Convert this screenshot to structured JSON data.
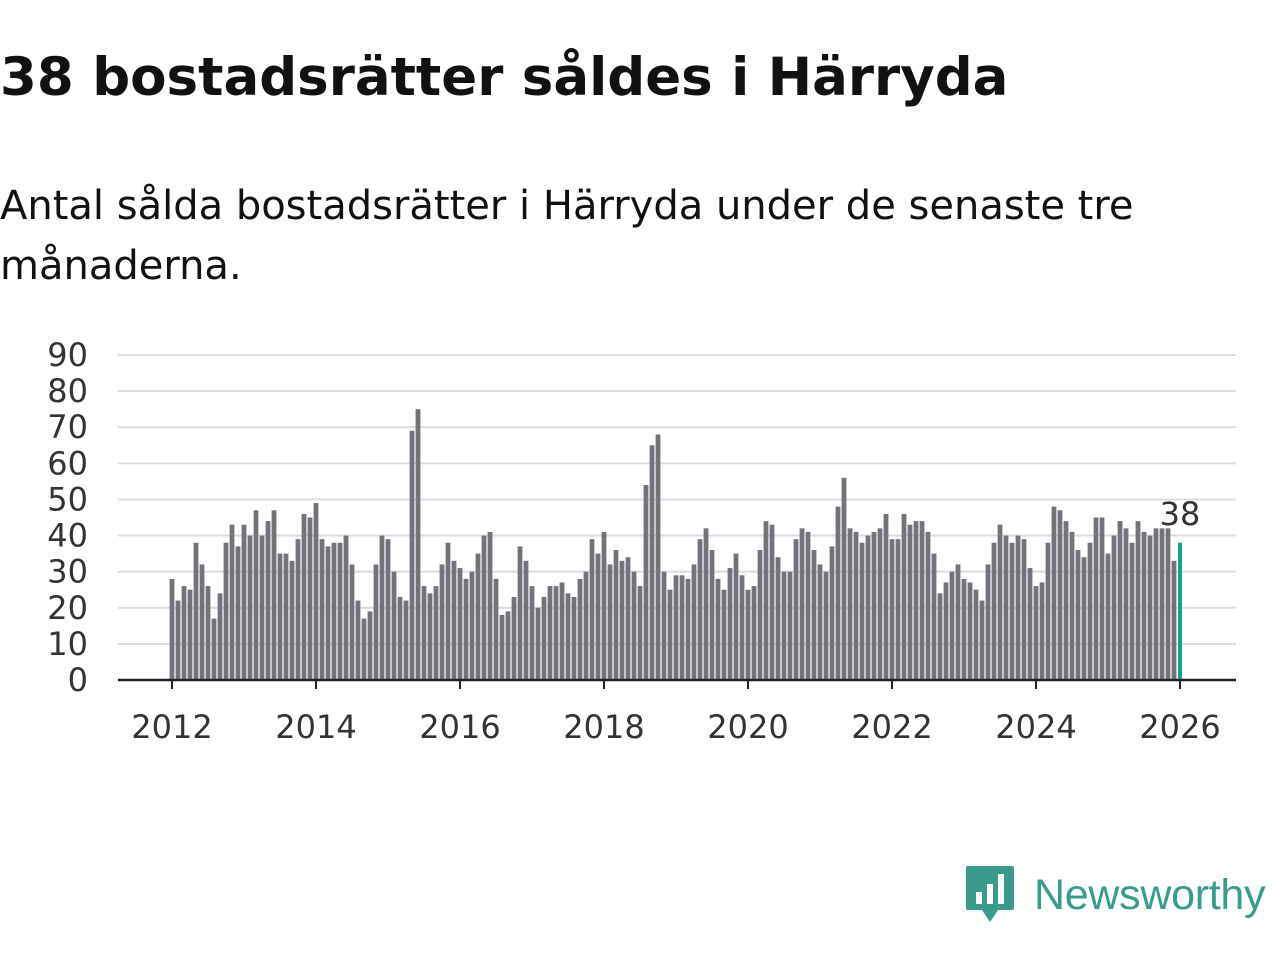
{
  "title": "38 bostadsrätter såldes i Härryda",
  "subtitle": "Antal sålda bostadsrätter i Härryda under de senaste tre månaderna.",
  "brand": {
    "name": "Newsworthy",
    "icon": "newsworthy-logo-icon",
    "color": "#3a9b8c"
  },
  "colors": {
    "bar": "#74737a",
    "highlight": "#17a192",
    "grid": "#dcdcdc",
    "axis": "#222222"
  },
  "chart_data": {
    "type": "bar",
    "title": "",
    "xlabel": "",
    "ylabel": "",
    "ylim": [
      0,
      90
    ],
    "yticks": [
      "0",
      "10",
      "20",
      "30",
      "40",
      "50",
      "60",
      "70",
      "80",
      "90"
    ],
    "xticks": [
      "2012",
      "2014",
      "2016",
      "2018",
      "2020",
      "2022",
      "2024",
      "2026"
    ],
    "start": "2012-01",
    "highlight_label": "38",
    "grid": true,
    "values": [
      28,
      22,
      26,
      25,
      38,
      32,
      26,
      17,
      24,
      38,
      43,
      37,
      43,
      40,
      47,
      40,
      44,
      47,
      35,
      35,
      33,
      39,
      46,
      45,
      49,
      39,
      37,
      38,
      38,
      40,
      32,
      22,
      17,
      19,
      32,
      40,
      39,
      30,
      23,
      22,
      69,
      75,
      26,
      24,
      26,
      32,
      38,
      33,
      31,
      28,
      30,
      35,
      40,
      41,
      28,
      18,
      19,
      23,
      37,
      33,
      26,
      20,
      23,
      26,
      26,
      27,
      24,
      23,
      28,
      30,
      39,
      35,
      41,
      32,
      36,
      33,
      34,
      30,
      26,
      54,
      65,
      68,
      30,
      25,
      29,
      29,
      28,
      32,
      39,
      42,
      36,
      28,
      25,
      31,
      35,
      29,
      25,
      26,
      36,
      44,
      43,
      34,
      30,
      30,
      39,
      42,
      41,
      36,
      32,
      30,
      37,
      48,
      56,
      42,
      41,
      38,
      40,
      41,
      42,
      46,
      39,
      39,
      46,
      43,
      44,
      44,
      41,
      35,
      24,
      27,
      30,
      32,
      28,
      27,
      25,
      22,
      32,
      38,
      43,
      40,
      38,
      40,
      39,
      31,
      26,
      27,
      38,
      48,
      47,
      44,
      41,
      36,
      34,
      38,
      45,
      45,
      35,
      40,
      44,
      42,
      38,
      44,
      41,
      40,
      42,
      42,
      42,
      33,
      38
    ]
  }
}
